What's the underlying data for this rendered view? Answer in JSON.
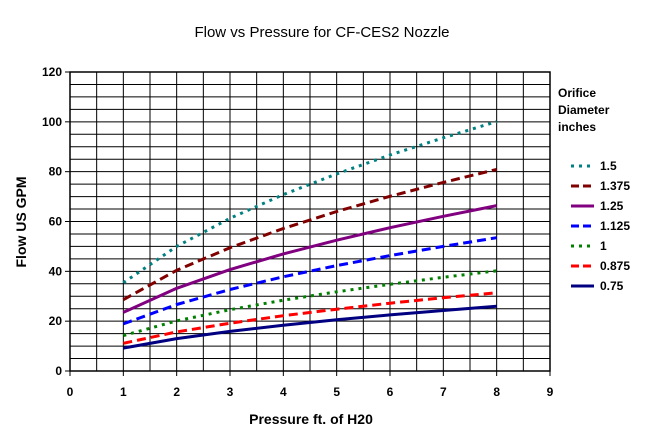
{
  "chart_data": {
    "type": "line",
    "title": "Flow vs Pressure for CF-CES2 Nozzle",
    "xlabel": "Pressure  ft. of H20",
    "ylabel": "Flow  US GPM",
    "xlim": [
      0,
      9
    ],
    "ylim": [
      0,
      120
    ],
    "xticks": [
      0,
      1,
      2,
      3,
      4,
      5,
      6,
      7,
      8,
      9
    ],
    "yticks": [
      0,
      20,
      40,
      60,
      80,
      100,
      120
    ],
    "grid": true,
    "legend": {
      "placement": "right",
      "title_lines": [
        "Orifice",
        "Diameter",
        "inches"
      ]
    },
    "series": [
      {
        "name": "1.5",
        "color": "#008080",
        "style": "dotted",
        "x": [
          1,
          2,
          3,
          4,
          5,
          6,
          7,
          8
        ],
        "y": [
          35.4,
          50.0,
          61.3,
          70.8,
          79.1,
          86.7,
          93.6,
          100.1
        ]
      },
      {
        "name": "1.375",
        "color": "#800000",
        "style": "dashed",
        "x": [
          1,
          2,
          3,
          4,
          5,
          6,
          7,
          8
        ],
        "y": [
          28.6,
          40.4,
          49.5,
          57.2,
          64.0,
          70.1,
          75.7,
          80.9
        ]
      },
      {
        "name": "1.25",
        "color": "#800080",
        "style": "solid",
        "x": [
          1,
          2,
          3,
          4,
          5,
          6,
          7,
          8
        ],
        "y": [
          23.5,
          33.2,
          40.7,
          47.0,
          52.5,
          57.5,
          62.1,
          66.4
        ]
      },
      {
        "name": "1.125",
        "color": "#0000ff",
        "style": "dashed",
        "x": [
          1,
          2,
          3,
          4,
          5,
          6,
          7,
          8
        ],
        "y": [
          18.9,
          26.7,
          32.7,
          37.8,
          42.3,
          46.3,
          50.0,
          53.5
        ]
      },
      {
        "name": "1",
        "color": "#008000",
        "style": "dotted",
        "x": [
          1,
          2,
          3,
          4,
          5,
          6,
          7,
          8
        ],
        "y": [
          14.2,
          20.1,
          24.6,
          28.4,
          31.8,
          34.8,
          37.6,
          40.2
        ]
      },
      {
        "name": "0.875",
        "color": "#ff0000",
        "style": "dashed",
        "x": [
          1,
          2,
          3,
          4,
          5,
          6,
          7,
          8
        ],
        "y": [
          11.1,
          15.7,
          19.2,
          22.2,
          24.8,
          27.2,
          29.4,
          31.4
        ]
      },
      {
        "name": "0.75",
        "color": "#000080",
        "style": "solid",
        "x": [
          1,
          2,
          3,
          4,
          5,
          6,
          7,
          8
        ],
        "y": [
          9.2,
          13.0,
          15.9,
          18.4,
          20.6,
          22.5,
          24.3,
          26.0
        ]
      }
    ]
  }
}
